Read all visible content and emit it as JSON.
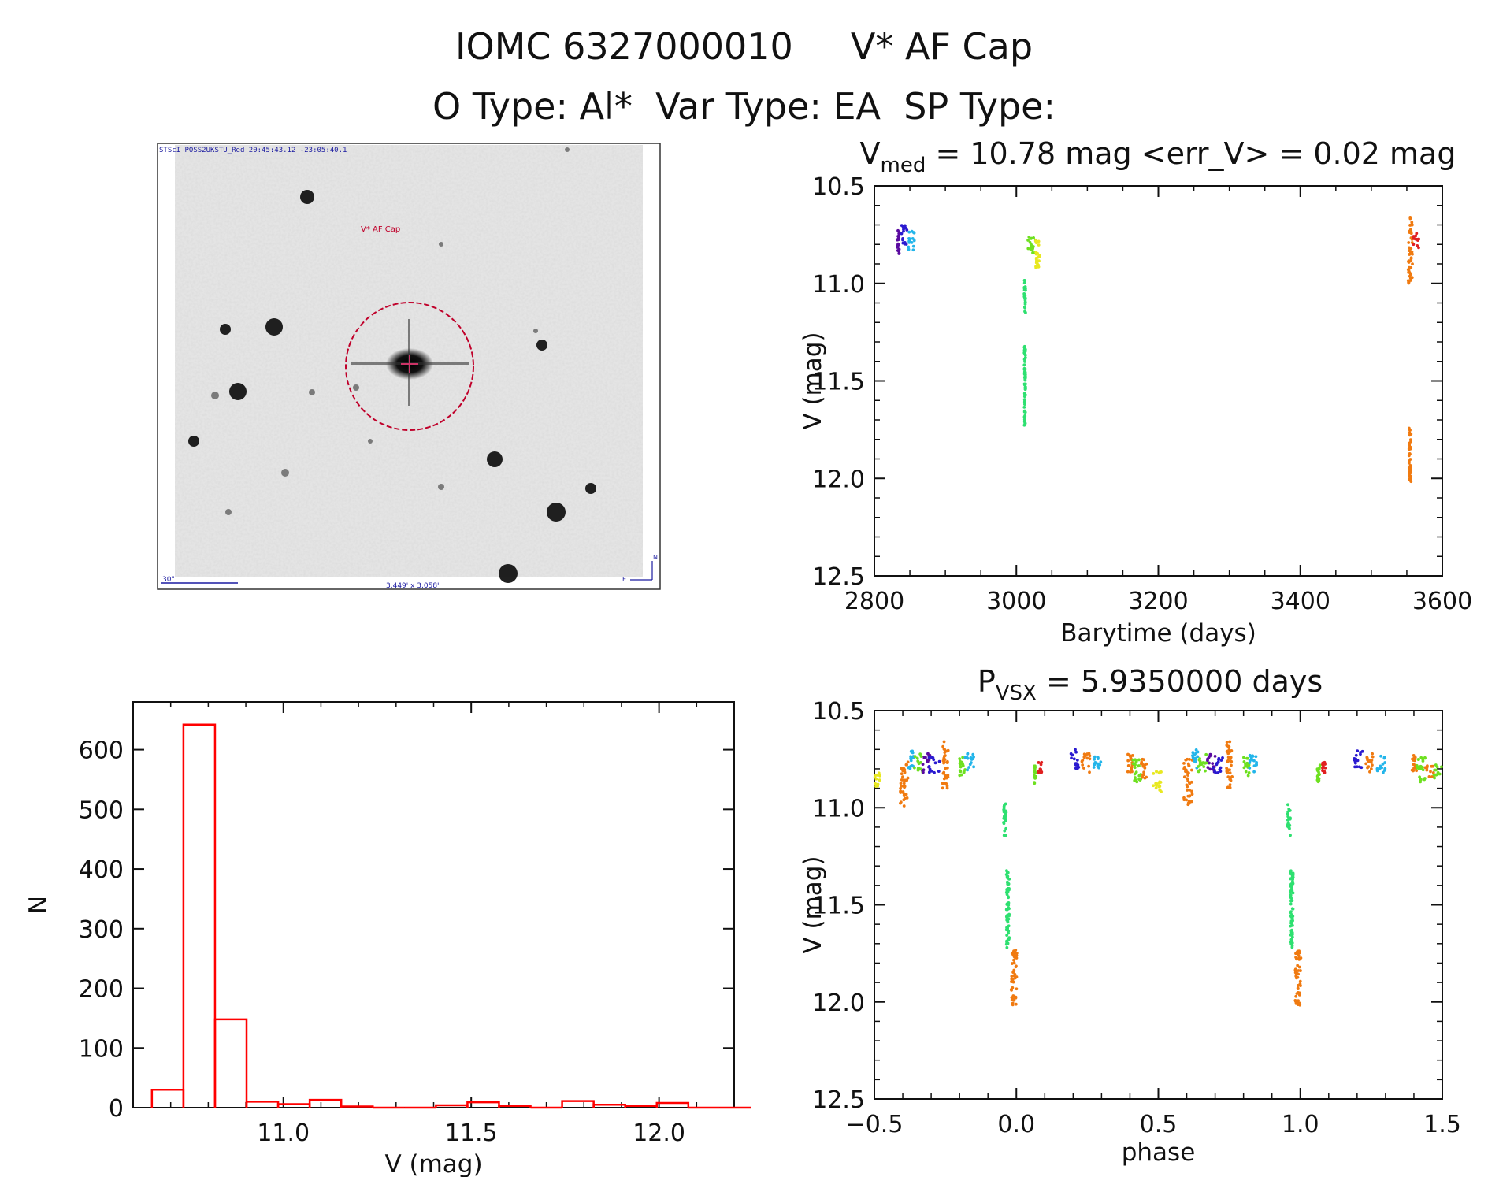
{
  "header": {
    "title": "IOMC 6327000010     V* AF Cap",
    "subtitle": "O Type: Al*  Var Type: EA  SP Type:"
  },
  "thumbnail": {
    "header_text": "STScI POSS2UKSTU_Red 20:45:43.12 -23:05:40.1",
    "target_label": "V* AF Cap",
    "scale_label": "30\"",
    "fov_label": "3.449' x 3.058'",
    "compass_n": "N",
    "compass_e": "E"
  },
  "colors": {
    "hist": "#ff0000",
    "marker": "#c0002a",
    "axis": "#111111",
    "palette": [
      "#5a0aa0",
      "#2a1ad0",
      "#23b5ea",
      "#2ee070",
      "#6ee020",
      "#e8e820",
      "#f07a10",
      "#e02020"
    ]
  },
  "chart_data": [
    {
      "id": "lightcurve",
      "type": "scatter",
      "title": {
        "main": "V",
        "sub": "med",
        "rest": " = 10.78 mag <err_V> = 0.02 mag"
      },
      "xlabel": "Barytime (days)",
      "ylabel": "V (mag)",
      "xlim": [
        2800,
        3600
      ],
      "ylim": [
        10.5,
        12.5
      ],
      "y_inverted": true,
      "xticks": [
        2800,
        3000,
        3200,
        3400,
        3600
      ],
      "yticks": [
        10.5,
        11.0,
        11.5,
        12.0,
        12.5
      ],
      "groups": [
        {
          "color": 0,
          "x": [
            2832,
            2835
          ],
          "y": [
            10.72,
            10.85
          ]
        },
        {
          "color": 1,
          "x": [
            2838,
            2846
          ],
          "y": [
            10.7,
            10.8
          ]
        },
        {
          "color": 2,
          "x": [
            2848,
            2858
          ],
          "y": [
            10.73,
            10.83
          ]
        },
        {
          "color": 3,
          "x": [
            3011,
            3013
          ],
          "y": [
            10.98,
            11.15
          ]
        },
        {
          "color": 3,
          "x": [
            3011,
            3013
          ],
          "y": [
            11.32,
            11.73
          ]
        },
        {
          "color": 4,
          "x": [
            3016,
            3028
          ],
          "y": [
            10.73,
            10.85
          ]
        },
        {
          "color": 5,
          "x": [
            3027,
            3033
          ],
          "y": [
            10.76,
            10.92
          ]
        },
        {
          "color": 6,
          "x": [
            3552,
            3558
          ],
          "y": [
            10.66,
            11.0
          ]
        },
        {
          "color": 6,
          "x": [
            3553,
            3556
          ],
          "y": [
            11.73,
            12.02
          ]
        },
        {
          "color": 7,
          "x": [
            3558,
            3568
          ],
          "y": [
            10.74,
            10.82
          ]
        }
      ]
    },
    {
      "id": "histogram",
      "type": "bar",
      "xlabel": "V (mag)",
      "ylabel": "N",
      "xlim": [
        10.6,
        12.2
      ],
      "ylim": [
        0,
        680
      ],
      "xticks": [
        11.0,
        11.5,
        12.0
      ],
      "yticks": [
        0,
        100,
        200,
        300,
        400,
        500,
        600
      ],
      "bin_width": 0.084,
      "bin_start": 10.65,
      "counts": [
        30,
        642,
        148,
        10,
        6,
        13,
        2,
        0,
        0,
        4,
        9,
        3,
        0,
        11,
        5,
        3,
        8,
        0,
        0
      ]
    },
    {
      "id": "phased",
      "type": "scatter",
      "title": {
        "main": "P",
        "sub": "VSX",
        "rest": " = 5.9350000 days"
      },
      "xlabel": "phase",
      "ylabel": "V (mag)",
      "xlim": [
        -0.5,
        1.5
      ],
      "ylim": [
        10.5,
        12.5
      ],
      "y_inverted": true,
      "xticks": [
        -0.5,
        0.0,
        0.5,
        1.0,
        1.5
      ],
      "yticks": [
        10.5,
        11.0,
        11.5,
        12.0,
        12.5
      ],
      "groups": [
        {
          "color": 5,
          "x": [
            -0.5,
            -0.48
          ],
          "y": [
            10.82,
            10.9
          ]
        },
        {
          "color": 6,
          "x": [
            -0.41,
            -0.38
          ],
          "y": [
            10.75,
            11.0
          ]
        },
        {
          "color": 2,
          "x": [
            -0.38,
            -0.36
          ],
          "y": [
            10.7,
            10.8
          ]
        },
        {
          "color": 4,
          "x": [
            -0.36,
            -0.33
          ],
          "y": [
            10.72,
            10.82
          ]
        },
        {
          "color": 0,
          "x": [
            -0.33,
            -0.3
          ],
          "y": [
            10.72,
            10.82
          ]
        },
        {
          "color": 1,
          "x": [
            -0.31,
            -0.27
          ],
          "y": [
            10.73,
            10.82
          ]
        },
        {
          "color": 6,
          "x": [
            -0.26,
            -0.24
          ],
          "y": [
            10.66,
            10.9
          ]
        },
        {
          "color": 4,
          "x": [
            -0.2,
            -0.18
          ],
          "y": [
            10.74,
            10.84
          ]
        },
        {
          "color": 2,
          "x": [
            -0.18,
            -0.15
          ],
          "y": [
            10.72,
            10.82
          ]
        },
        {
          "color": 3,
          "x": [
            -0.045,
            -0.035
          ],
          "y": [
            10.98,
            11.15
          ]
        },
        {
          "color": 3,
          "x": [
            -0.035,
            -0.025
          ],
          "y": [
            11.32,
            11.73
          ]
        },
        {
          "color": 6,
          "x": [
            -0.018,
            0.002
          ],
          "y": [
            11.73,
            12.02
          ]
        },
        {
          "color": 4,
          "x": [
            0.06,
            0.07
          ],
          "y": [
            10.78,
            10.88
          ]
        },
        {
          "color": 7,
          "x": [
            0.075,
            0.09
          ],
          "y": [
            10.76,
            10.82
          ]
        },
        {
          "color": 1,
          "x": [
            0.19,
            0.22
          ],
          "y": [
            10.7,
            10.8
          ]
        },
        {
          "color": 6,
          "x": [
            0.23,
            0.26
          ],
          "y": [
            10.72,
            10.82
          ]
        },
        {
          "color": 2,
          "x": [
            0.27,
            0.3
          ],
          "y": [
            10.73,
            10.82
          ]
        },
        {
          "color": 6,
          "x": [
            0.39,
            0.41
          ],
          "y": [
            10.72,
            10.82
          ]
        },
        {
          "color": 4,
          "x": [
            0.41,
            0.44
          ],
          "y": [
            10.74,
            10.88
          ]
        },
        {
          "color": 6,
          "x": [
            0.44,
            0.46
          ],
          "y": [
            10.75,
            10.85
          ]
        },
        {
          "color": 5,
          "x": [
            0.48,
            0.51
          ],
          "y": [
            10.8,
            10.92
          ]
        },
        {
          "color": 6,
          "x": [
            0.59,
            0.62
          ],
          "y": [
            10.75,
            11.0
          ]
        },
        {
          "color": 2,
          "x": [
            0.62,
            0.64
          ],
          "y": [
            10.7,
            10.8
          ]
        },
        {
          "color": 4,
          "x": [
            0.64,
            0.67
          ],
          "y": [
            10.72,
            10.82
          ]
        },
        {
          "color": 0,
          "x": [
            0.67,
            0.7
          ],
          "y": [
            10.72,
            10.82
          ]
        },
        {
          "color": 1,
          "x": [
            0.69,
            0.73
          ],
          "y": [
            10.73,
            10.82
          ]
        },
        {
          "color": 6,
          "x": [
            0.74,
            0.76
          ],
          "y": [
            10.66,
            10.9
          ]
        },
        {
          "color": 4,
          "x": [
            0.8,
            0.82
          ],
          "y": [
            10.74,
            10.84
          ]
        },
        {
          "color": 2,
          "x": [
            0.82,
            0.85
          ],
          "y": [
            10.72,
            10.82
          ]
        },
        {
          "color": 3,
          "x": [
            0.955,
            0.965
          ],
          "y": [
            10.98,
            11.15
          ]
        },
        {
          "color": 3,
          "x": [
            0.965,
            0.975
          ],
          "y": [
            11.32,
            11.73
          ]
        },
        {
          "color": 6,
          "x": [
            0.982,
            1.002
          ],
          "y": [
            11.73,
            12.02
          ]
        },
        {
          "color": 4,
          "x": [
            1.06,
            1.07
          ],
          "y": [
            10.78,
            10.88
          ]
        },
        {
          "color": 7,
          "x": [
            1.075,
            1.09
          ],
          "y": [
            10.76,
            10.82
          ]
        },
        {
          "color": 1,
          "x": [
            1.19,
            1.22
          ],
          "y": [
            10.7,
            10.8
          ]
        },
        {
          "color": 6,
          "x": [
            1.23,
            1.26
          ],
          "y": [
            10.72,
            10.82
          ]
        },
        {
          "color": 2,
          "x": [
            1.27,
            1.3
          ],
          "y": [
            10.73,
            10.82
          ]
        },
        {
          "color": 6,
          "x": [
            1.39,
            1.41
          ],
          "y": [
            10.72,
            10.82
          ]
        },
        {
          "color": 4,
          "x": [
            1.41,
            1.44
          ],
          "y": [
            10.74,
            10.88
          ]
        },
        {
          "color": 6,
          "x": [
            1.44,
            1.47
          ],
          "y": [
            10.78,
            10.85
          ]
        },
        {
          "color": 4,
          "x": [
            1.47,
            1.5
          ],
          "y": [
            10.78,
            10.85
          ]
        }
      ]
    }
  ]
}
